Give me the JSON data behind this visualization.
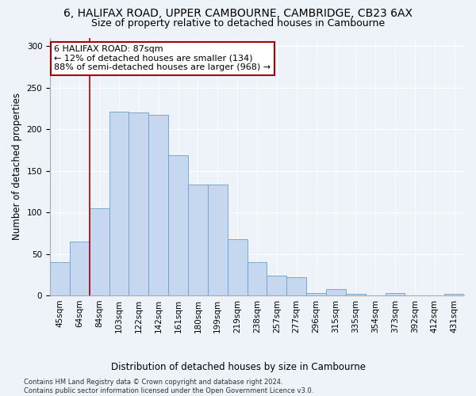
{
  "title_line1": "6, HALIFAX ROAD, UPPER CAMBOURNE, CAMBRIDGE, CB23 6AX",
  "title_line2": "Size of property relative to detached houses in Cambourne",
  "xlabel": "Distribution of detached houses by size in Cambourne",
  "ylabel": "Number of detached properties",
  "categories": [
    "45sqm",
    "64sqm",
    "84sqm",
    "103sqm",
    "122sqm",
    "142sqm",
    "161sqm",
    "180sqm",
    "199sqm",
    "219sqm",
    "238sqm",
    "257sqm",
    "277sqm",
    "296sqm",
    "315sqm",
    "335sqm",
    "354sqm",
    "373sqm",
    "392sqm",
    "412sqm",
    "431sqm"
  ],
  "values": [
    40,
    65,
    105,
    221,
    220,
    217,
    169,
    133,
    133,
    68,
    40,
    24,
    22,
    3,
    8,
    2,
    0,
    3,
    0,
    0,
    2
  ],
  "bar_color": "#c5d8f0",
  "bar_edge_color": "#6aa0cc",
  "vline_position": 1.5,
  "vline_color": "#aa0000",
  "annotation_text": "6 HALIFAX ROAD: 87sqm\n← 12% of detached houses are smaller (134)\n88% of semi-detached houses are larger (968) →",
  "annotation_box_color": "#ffffff",
  "annotation_box_edge_color": "#aa0000",
  "ylim": [
    0,
    310
  ],
  "yticks": [
    0,
    50,
    100,
    150,
    200,
    250,
    300
  ],
  "background_color": "#eef2f9",
  "footer": "Contains HM Land Registry data © Crown copyright and database right 2024.\nContains public sector information licensed under the Open Government Licence v3.0.",
  "title_fontsize": 10,
  "subtitle_fontsize": 9,
  "axis_label_fontsize": 8.5,
  "tick_fontsize": 7.5,
  "annotation_fontsize": 8,
  "footer_fontsize": 6
}
